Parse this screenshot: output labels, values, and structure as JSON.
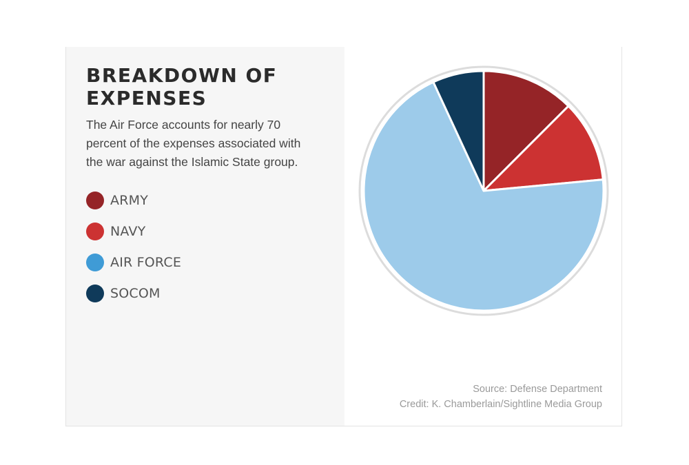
{
  "header": {
    "title": "BREAKDOWN OF EXPENSES",
    "subtitle": "The Air Force accounts for nearly 70 percent of the expenses associated with the war against the Islamic State group."
  },
  "legend": [
    {
      "label": "ARMY",
      "color": "#952427"
    },
    {
      "label": "NAVY",
      "color": "#cc3232"
    },
    {
      "label": "AIR FORCE",
      "color": "#3f9bd6"
    },
    {
      "label": "SOCOM",
      "color": "#0f3a5a"
    }
  ],
  "footer": {
    "source": "Source: Defense Department",
    "credit": "Credit: K. Chamberlain/Sightline Media Group"
  },
  "chart_data": {
    "type": "pie",
    "categories": [
      "ARMY",
      "NAVY",
      "AIR FORCE",
      "SOCOM"
    ],
    "values": [
      12.5,
      11.0,
      69.6,
      6.9
    ],
    "colors": [
      "#952427",
      "#cc3232",
      "#9dcbea",
      "#0f3a5a"
    ],
    "title": "BREAKDOWN OF EXPENSES",
    "legend_position": "left"
  }
}
